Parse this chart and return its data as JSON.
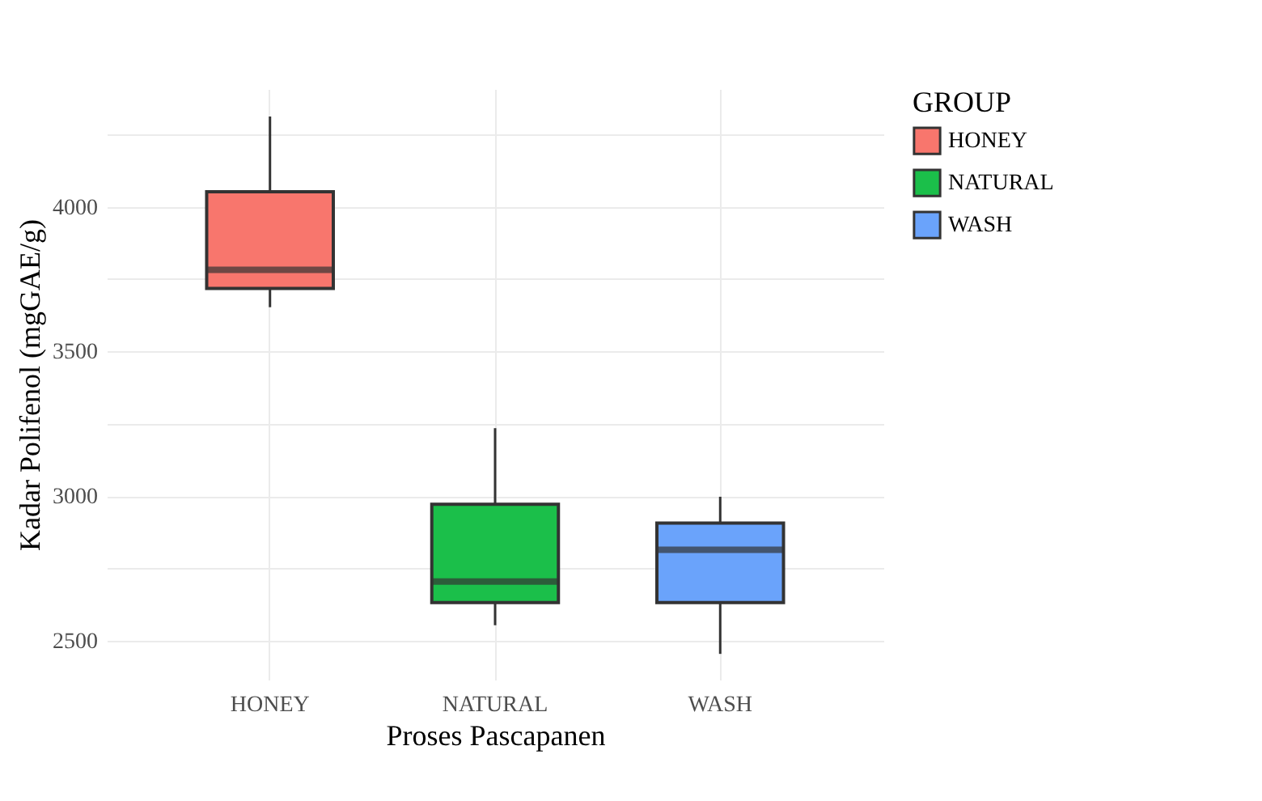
{
  "chart_data": {
    "type": "box",
    "xlabel": "Proses Pascapanen",
    "ylabel": "Kadar Polifenol (mgGAE/g)",
    "legend_title": "GROUP",
    "categories": [
      "HONEY",
      "NATURAL",
      "WASH"
    ],
    "series": [
      {
        "name": "HONEY",
        "color": "#f8766d",
        "boxes": [
          {
            "low": 3653,
            "q1": 3718,
            "median": 3782,
            "q3": 4052,
            "high": 4312
          },
          null,
          null
        ]
      },
      {
        "name": "NATURAL",
        "color": "#1bbf4a",
        "boxes": [
          null,
          {
            "low": 2554,
            "q1": 2632,
            "median": 2705,
            "q3": 2972,
            "high": 3235
          },
          null
        ]
      },
      {
        "name": "WASH",
        "color": "#6aa3fb",
        "boxes": [
          null,
          null,
          {
            "low": 2455,
            "q1": 2632,
            "median": 2815,
            "q3": 2907,
            "high": 2998
          }
        ]
      }
    ],
    "ylim": [
      2366,
      4407
    ],
    "yticks": [
      2500,
      {
        "value": 2750,
        "label": null
      },
      3000,
      {
        "value": 3250,
        "label": null
      },
      3500,
      {
        "value": 3750,
        "label": null
      },
      4000,
      {
        "value": 4250,
        "label": null
      }
    ],
    "grid": true,
    "legend": "right"
  }
}
